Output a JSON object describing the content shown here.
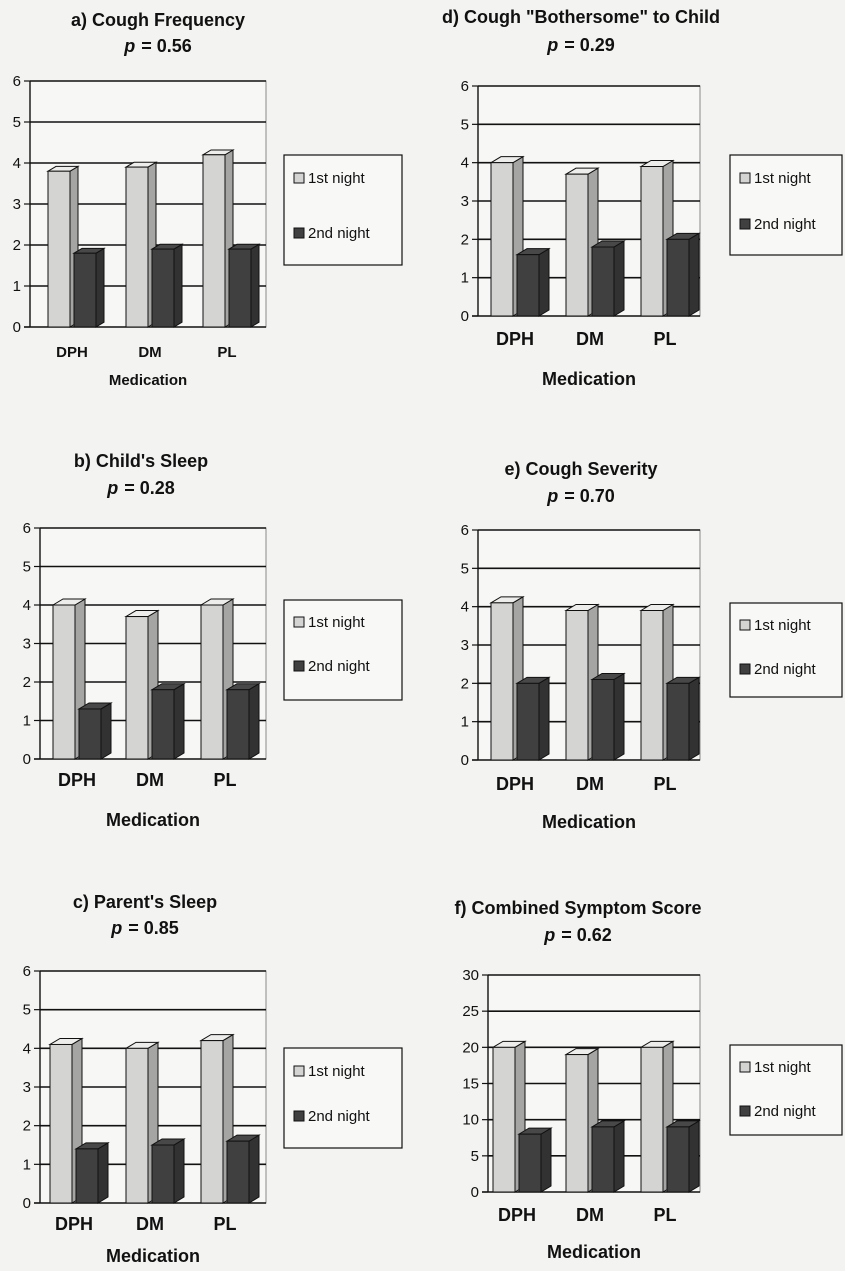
{
  "colors": {
    "first_night": "#d4d4d2",
    "second_night": "#404040",
    "grid": "#111111",
    "background": "#f3f3f1"
  },
  "chart_data": [
    {
      "type": "bar",
      "title": "a) Cough Frequency",
      "p_label": "p",
      "p_value": "= 0.56",
      "categories": [
        "DPH",
        "DM",
        "PL"
      ],
      "xlabel": "Medication",
      "ylabel": "",
      "ylim": [
        0,
        6
      ],
      "yticks": [
        0,
        1,
        2,
        3,
        4,
        5,
        6
      ],
      "grid": true,
      "legend_position": "right",
      "series": [
        {
          "name": "1st night",
          "values": [
            3.8,
            3.9,
            4.2
          ]
        },
        {
          "name": "2nd night",
          "values": [
            1.8,
            1.9,
            1.9
          ]
        }
      ]
    },
    {
      "type": "bar",
      "title": "b) Child's Sleep",
      "p_label": "p",
      "p_value": "= 0.28",
      "categories": [
        "DPH",
        "DM",
        "PL"
      ],
      "xlabel": "Medication",
      "ylabel": "",
      "ylim": [
        0,
        6
      ],
      "yticks": [
        0,
        1,
        2,
        3,
        4,
        5,
        6
      ],
      "grid": true,
      "legend_position": "right",
      "series": [
        {
          "name": "1st night",
          "values": [
            4.0,
            3.7,
            4.0
          ]
        },
        {
          "name": "2nd night",
          "values": [
            1.3,
            1.8,
            1.8
          ]
        }
      ]
    },
    {
      "type": "bar",
      "title": "c) Parent's Sleep",
      "p_label": "p",
      "p_value": "= 0.85",
      "categories": [
        "DPH",
        "DM",
        "PL"
      ],
      "xlabel": "Medication",
      "ylabel": "",
      "ylim": [
        0,
        6
      ],
      "yticks": [
        0,
        1,
        2,
        3,
        4,
        5,
        6
      ],
      "grid": true,
      "legend_position": "right",
      "series": [
        {
          "name": "1st night",
          "values": [
            4.1,
            4.0,
            4.2
          ]
        },
        {
          "name": "2nd night",
          "values": [
            1.4,
            1.5,
            1.6
          ]
        }
      ]
    },
    {
      "type": "bar",
      "title": "d) Cough \"Bothersome\" to Child",
      "p_label": "p",
      "p_value": "= 0.29",
      "categories": [
        "DPH",
        "DM",
        "PL"
      ],
      "xlabel": "Medication",
      "ylabel": "",
      "ylim": [
        0,
        6
      ],
      "yticks": [
        0,
        1,
        2,
        3,
        4,
        5,
        6
      ],
      "grid": true,
      "legend_position": "right",
      "series": [
        {
          "name": "1st night",
          "values": [
            4.0,
            3.7,
            3.9
          ]
        },
        {
          "name": "2nd night",
          "values": [
            1.6,
            1.8,
            2.0
          ]
        }
      ]
    },
    {
      "type": "bar",
      "title": "e) Cough Severity",
      "p_label": "p",
      "p_value": "= 0.70",
      "categories": [
        "DPH",
        "DM",
        "PL"
      ],
      "xlabel": "Medication",
      "ylabel": "",
      "ylim": [
        0,
        6
      ],
      "yticks": [
        0,
        1,
        2,
        3,
        4,
        5,
        6
      ],
      "grid": true,
      "legend_position": "right",
      "series": [
        {
          "name": "1st night",
          "values": [
            4.1,
            3.9,
            3.9
          ]
        },
        {
          "name": "2nd night",
          "values": [
            2.0,
            2.1,
            2.0
          ]
        }
      ]
    },
    {
      "type": "bar",
      "title": "f) Combined Symptom Score",
      "p_label": "p",
      "p_value": "= 0.62",
      "categories": [
        "DPH",
        "DM",
        "PL"
      ],
      "xlabel": "Medication",
      "ylabel": "",
      "ylim": [
        0,
        30
      ],
      "yticks": [
        0,
        5,
        10,
        15,
        20,
        25,
        30
      ],
      "grid": true,
      "legend_position": "right",
      "series": [
        {
          "name": "1st night",
          "values": [
            20,
            19,
            20
          ]
        },
        {
          "name": "2nd night",
          "values": [
            8,
            9,
            9
          ]
        }
      ]
    }
  ]
}
